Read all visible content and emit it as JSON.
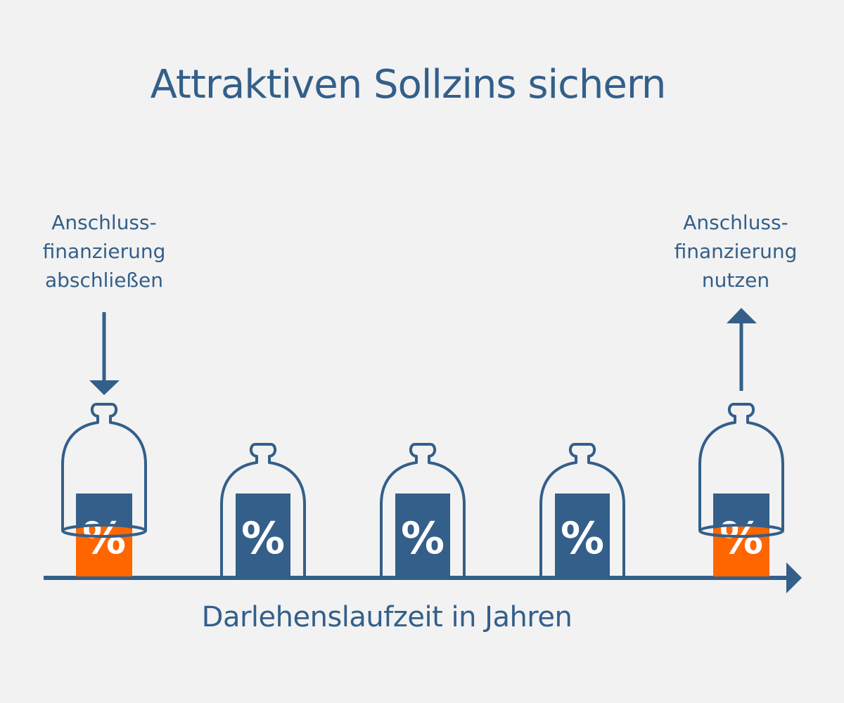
{
  "title": "Attraktiven Sollzins sichern",
  "left_label": "Anschluss-\nfinanzierung\nabschließen",
  "right_label": "Anschluss-\nfinanzierung\nnutzen",
  "axis_label": "Darlehenslaufzeit in Jahren",
  "percent_symbol": "%",
  "colors": {
    "primary": "#335f8a",
    "accent": "#ff6600",
    "background": "#f2f2f2"
  },
  "jars": [
    {
      "state": "lifted",
      "box_color": "accent"
    },
    {
      "state": "closed",
      "box_color": "primary"
    },
    {
      "state": "closed",
      "box_color": "primary"
    },
    {
      "state": "closed",
      "box_color": "primary"
    },
    {
      "state": "lifted",
      "box_color": "accent"
    }
  ]
}
